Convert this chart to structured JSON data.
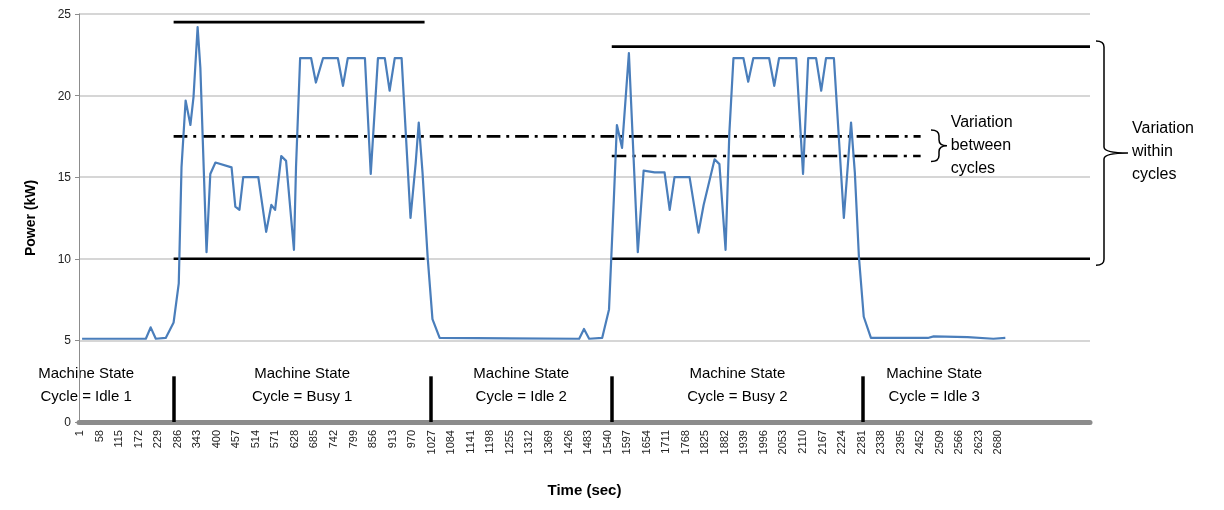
{
  "chart_data": {
    "type": "line",
    "xlabel": "Time (sec)",
    "ylabel": "Power (kW)",
    "xlim": [
      1,
      2950
    ],
    "xticks": [
      1,
      58,
      115,
      172,
      229,
      286,
      343,
      400,
      457,
      514,
      571,
      628,
      685,
      742,
      799,
      856,
      913,
      970,
      1027,
      1084,
      1141,
      1198,
      1255,
      1312,
      1369,
      1426,
      1483,
      1540,
      1597,
      1654,
      1711,
      1768,
      1825,
      1882,
      1939,
      1996,
      2053,
      2110,
      2167,
      2224,
      2281,
      2338,
      2395,
      2452,
      2509,
      2566,
      2623,
      2680
    ],
    "ylim": [
      0,
      25
    ],
    "yticks": [
      0,
      5,
      10,
      15,
      20,
      25
    ],
    "grid": "y",
    "marker": "none",
    "series": [
      {
        "color": "#4a7ebb",
        "line_style": "solid",
        "x": [
          10,
          196,
          210,
          225,
          254,
          277,
          292,
          300,
          312,
          326,
          335,
          347,
          355,
          373,
          384,
          399,
          446,
          457,
          469,
          480,
          524,
          547,
          562,
          573,
          591,
          605,
          628,
          634,
          646,
          678,
          692,
          713,
          756,
          771,
          785,
          835,
          852,
          873,
          893,
          907,
          922,
          942,
          968,
          983,
          992,
          1003,
          1018,
          1032,
          1053,
          1460,
          1474,
          1489,
          1527,
          1547,
          1561,
          1570,
          1585,
          1605,
          1631,
          1648,
          1680,
          1709,
          1724,
          1738,
          1782,
          1808,
          1823,
          1855,
          1869,
          1887,
          1898,
          1910,
          1939,
          1953,
          1968,
          2014,
          2029,
          2043,
          2093,
          2113,
          2128,
          2151,
          2166,
          2180,
          2203,
          2232,
          2244,
          2253,
          2264,
          2276,
          2290,
          2311,
          2477,
          2494,
          2593,
          2668,
          2703
        ],
        "values": [
          5.1,
          5.1,
          5.8,
          5.1,
          5.15,
          6.1,
          8.5,
          15.6,
          19.7,
          18.2,
          19.9,
          24.2,
          21.7,
          10.4,
          15.2,
          15.9,
          15.6,
          13.2,
          13.0,
          15.0,
          15.0,
          11.65,
          13.3,
          13.0,
          16.3,
          16.0,
          10.55,
          15.6,
          22.3,
          22.3,
          20.8,
          22.3,
          22.3,
          20.6,
          22.3,
          22.3,
          15.2,
          22.3,
          22.3,
          20.3,
          22.3,
          22.3,
          12.5,
          15.85,
          18.35,
          15.3,
          10.1,
          6.3,
          5.15,
          5.1,
          5.7,
          5.1,
          5.15,
          6.9,
          13.6,
          18.2,
          16.8,
          22.6,
          10.4,
          15.4,
          15.3,
          15.3,
          13.0,
          15.0,
          15.0,
          11.6,
          13.3,
          16.1,
          15.8,
          10.55,
          17.7,
          22.3,
          22.3,
          20.85,
          22.3,
          22.3,
          20.6,
          22.3,
          22.3,
          15.2,
          22.3,
          22.3,
          20.3,
          22.3,
          22.3,
          12.5,
          15.85,
          18.35,
          15.3,
          10.1,
          6.45,
          5.15,
          5.15,
          5.25,
          5.2,
          5.1,
          5.15
        ]
      },
      {
        "color": "#000000",
        "line_style": "solid",
        "x": [
          277,
          1009
        ],
        "values": [
          24.5,
          24.5
        ]
      },
      {
        "color": "#000000",
        "line_style": "solid",
        "x": [
          277,
          1009
        ],
        "values": [
          10,
          10
        ]
      },
      {
        "color": "#000000",
        "line_style": "solid",
        "x": [
          1555,
          2950
        ],
        "values": [
          23,
          23
        ]
      },
      {
        "color": "#000000",
        "line_style": "solid",
        "x": [
          1555,
          2950
        ],
        "values": [
          10,
          10
        ]
      },
      {
        "color": "#000000",
        "line_style": "dashed",
        "x": [
          277,
          2456
        ],
        "values": [
          17.5,
          17.5
        ]
      },
      {
        "color": "#000000",
        "line_style": "dashed",
        "x": [
          1555,
          2456
        ],
        "values": [
          16.3,
          16.3
        ]
      }
    ],
    "ref_lines": [
      {
        "axis": "x",
        "value": 277,
        "color": "#000000"
      },
      {
        "axis": "x",
        "value": 1027,
        "color": "#000000"
      },
      {
        "axis": "x",
        "value": 1555,
        "color": "#000000"
      },
      {
        "axis": "x",
        "value": 2288,
        "color": "#000000"
      }
    ],
    "annotations": [
      "Machine State\nCycle = Idle 1",
      "Machine State\nCycle = Busy 1",
      "Machine State\nCycle = Idle 2",
      "Machine State\nCycle = Busy 2",
      "Machine State\nCycle = Idle 3",
      "Variation\nbetween\ncycles",
      "Variation\nwithin\ncycles"
    ]
  }
}
